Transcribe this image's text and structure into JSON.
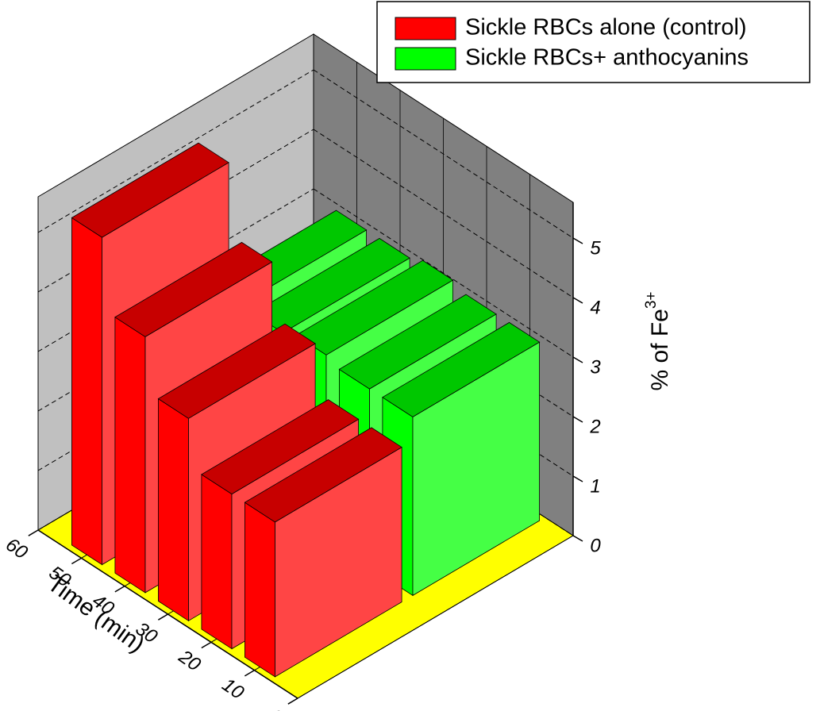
{
  "chart_data": {
    "type": "bar3d",
    "x": [
      10,
      20,
      30,
      40,
      50
    ],
    "xlim": [
      0,
      60
    ],
    "xticks": [
      0,
      10,
      20,
      30,
      40,
      50,
      60
    ],
    "x_label": "Time (min)",
    "ylim": [
      0,
      5.6
    ],
    "yticks": [
      0,
      1,
      2,
      3,
      4,
      5
    ],
    "y_label": "% of Fe",
    "y_label_superscript": "3+",
    "grid": true,
    "series": [
      {
        "name": "Sickle RBCs alone (control)",
        "color": "#ff0000",
        "values": [
          2.6,
          2.6,
          3.4,
          4.3,
          5.5
        ]
      },
      {
        "name": "Sickle RBCs+ anthocyanins",
        "color": "#00ff00",
        "values": [
          3.0,
          3.0,
          3.1,
          3.0,
          3.0
        ]
      }
    ]
  }
}
